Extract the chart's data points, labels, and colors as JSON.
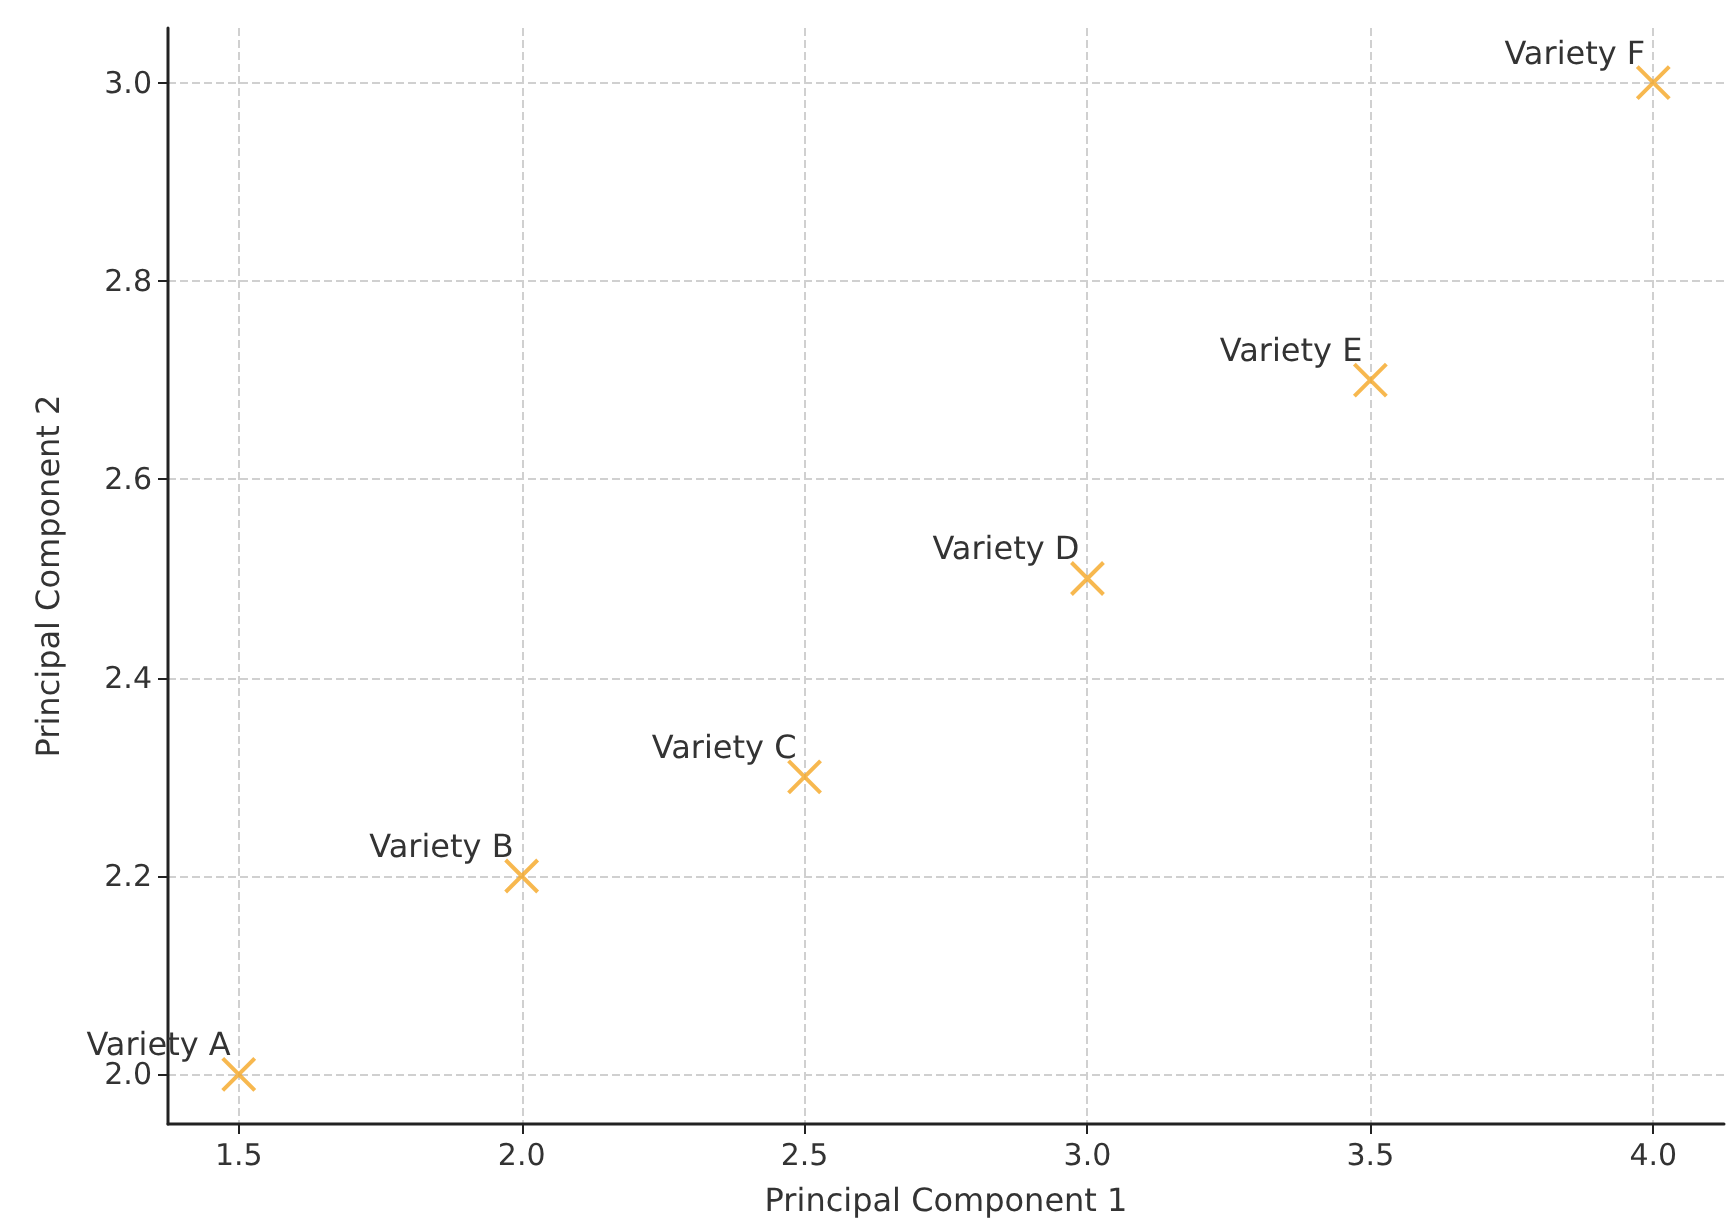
{
  "chart_data": {
    "type": "scatter",
    "xlabel": "Principal Component 1",
    "ylabel": "Principal Component 2",
    "x": [
      1.5,
      2.0,
      2.5,
      3.0,
      3.5,
      4.0
    ],
    "series": [
      {
        "color": "#f5a623",
        "values": [
          2.0,
          2.2,
          2.3,
          2.5,
          2.7,
          3.0
        ]
      }
    ],
    "xlim": [
      1.375,
      4.125
    ],
    "ylim": [
      1.95,
      3.055
    ],
    "xticks": [
      1.5,
      {
        "value": 2.0,
        "label": "2.0"
      },
      2.5,
      {
        "value": 3.0,
        "label": "3.0"
      },
      3.5,
      {
        "value": 4.0,
        "label": "4.0"
      }
    ],
    "yticks": [
      {
        "value": 2.0,
        "label": "2.0"
      },
      2.2,
      2.4,
      2.6,
      2.8,
      {
        "value": 3.0,
        "label": "3.0"
      }
    ],
    "annotations": [
      {
        "text": "Variety A",
        "x": 1.5,
        "y": 2.0
      },
      {
        "text": "Variety B",
        "x": 2.0,
        "y": 2.2
      },
      {
        "text": "Variety C",
        "x": 2.5,
        "y": 2.3
      },
      {
        "text": "Variety D",
        "x": 3.0,
        "y": 2.5
      },
      {
        "text": "Variety E",
        "x": 3.5,
        "y": 2.7
      },
      {
        "text": "Variety F",
        "x": 4.0,
        "y": 3.0
      }
    ],
    "grid": true,
    "marker": "cross"
  }
}
